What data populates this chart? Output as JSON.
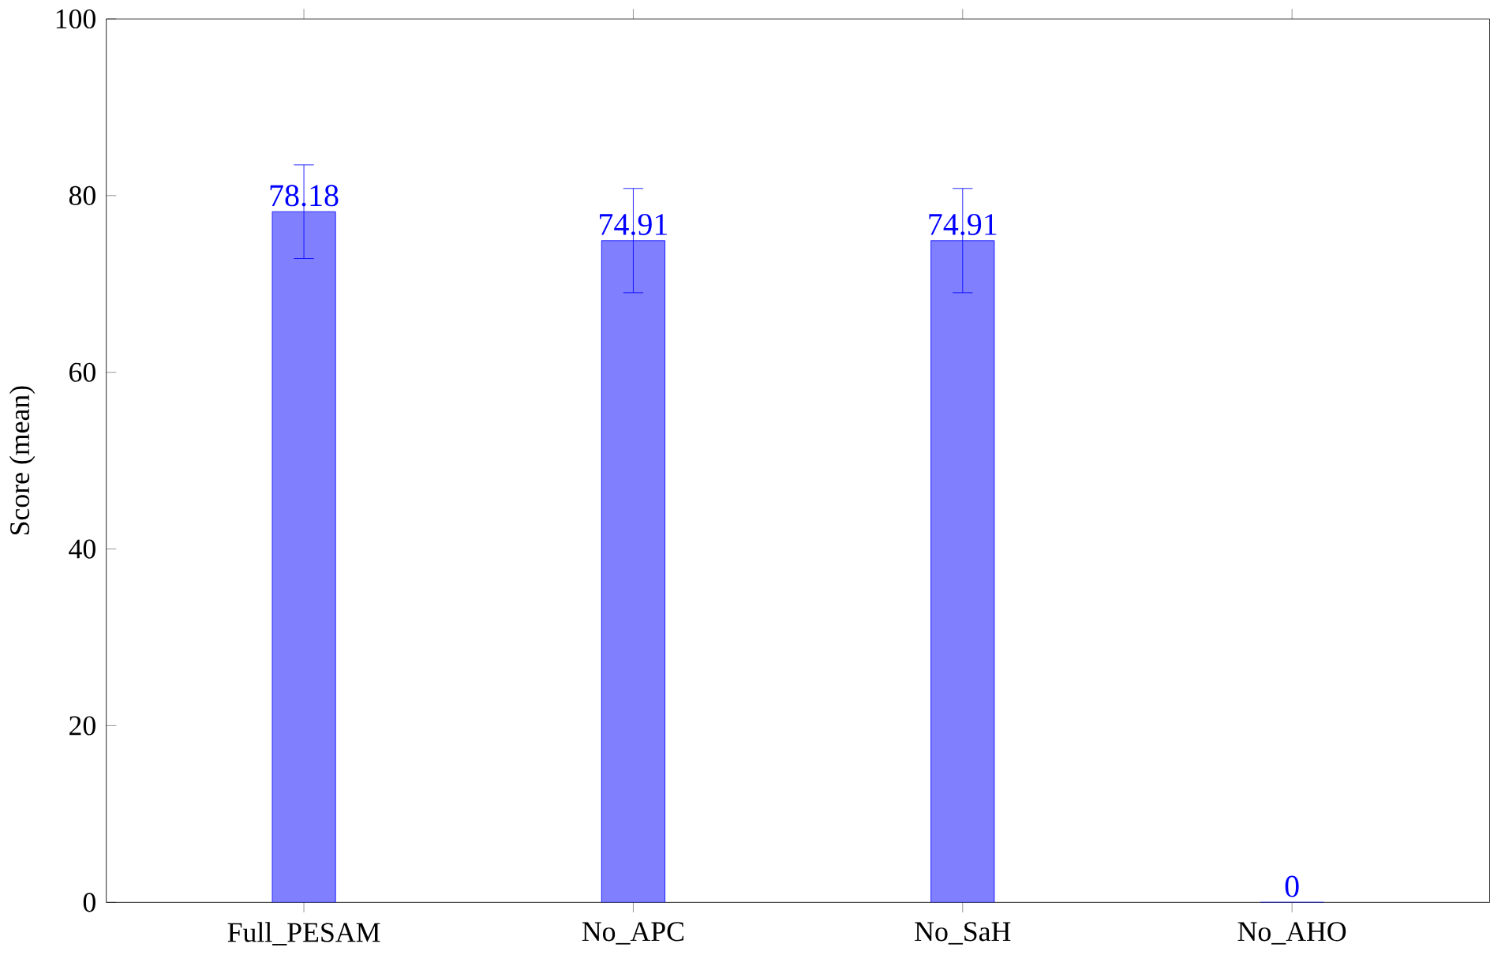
{
  "chart_data": {
    "type": "bar",
    "ylabel": "Score (mean)",
    "categories": [
      "Full_PESAM",
      "No_APC",
      "No_SaH",
      "No_AHO"
    ],
    "values": [
      78.18,
      74.91,
      74.91,
      0
    ],
    "errors": [
      5.3,
      5.9,
      5.9,
      null
    ],
    "color": "#8080ff",
    "ylim": [
      0,
      100
    ],
    "yticks": [
      0,
      20,
      40,
      60,
      80,
      100
    ],
    "data_labels": true,
    "grid": false
  }
}
